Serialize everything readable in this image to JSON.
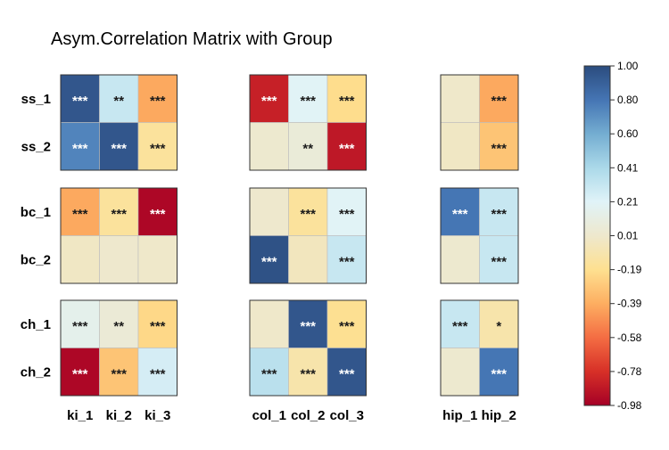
{
  "chart_data": {
    "type": "heatmap",
    "title": "Asym.Correlation Matrix with Group",
    "rows": [
      "ss_1",
      "ss_2",
      "bc_1",
      "bc_2",
      "ch_1",
      "ch_2"
    ],
    "row_groups": [
      [
        "ss_1",
        "ss_2"
      ],
      [
        "bc_1",
        "bc_2"
      ],
      [
        "ch_1",
        "ch_2"
      ]
    ],
    "columns": [
      "ki_1",
      "ki_2",
      "ki_3",
      "col_1",
      "col_2",
      "col_3",
      "hip_1",
      "hip_2"
    ],
    "column_groups": [
      [
        "ki_1",
        "ki_2",
        "ki_3"
      ],
      [
        "col_1",
        "col_2",
        "col_3"
      ],
      [
        "hip_1",
        "hip_2"
      ]
    ],
    "values": [
      [
        0.95,
        0.3,
        -0.4,
        -0.85,
        0.2,
        -0.2,
        0.0,
        -0.4
      ],
      [
        0.75,
        0.95,
        -0.15,
        0.02,
        0.06,
        -0.88,
        -0.02,
        -0.3
      ],
      [
        -0.4,
        -0.15,
        -0.95,
        0.01,
        -0.15,
        0.2,
        0.8,
        0.3
      ],
      [
        -0.02,
        0.01,
        0.0,
        0.97,
        -0.04,
        0.3,
        0.02,
        0.3
      ],
      [
        0.15,
        0.05,
        -0.22,
        0.0,
        0.95,
        -0.18,
        0.3,
        -0.1
      ],
      [
        -0.95,
        -0.3,
        0.25,
        0.35,
        -0.1,
        0.95,
        0.02,
        0.8
      ]
    ],
    "significance": [
      [
        "***",
        "**",
        "***",
        "***",
        "***",
        "***",
        "",
        "***"
      ],
      [
        "***",
        "***",
        "***",
        "",
        "**",
        "***",
        "",
        "***"
      ],
      [
        "***",
        "***",
        "***",
        "",
        "***",
        "***",
        "***",
        "***"
      ],
      [
        "",
        "",
        "",
        "***",
        "",
        "***",
        "",
        "***"
      ],
      [
        "***",
        "**",
        "***",
        "",
        "***",
        "***",
        "***",
        "*"
      ],
      [
        "***",
        "***",
        "***",
        "***",
        "***",
        "***",
        "",
        "***"
      ]
    ],
    "colorbar": {
      "min": -0.98,
      "max": 1.0,
      "tick_labels": [
        "1.00",
        "0.80",
        "0.60",
        "0.41",
        "0.21",
        "0.01",
        "-0.19",
        "-0.39",
        "-0.58",
        "-0.78",
        "-0.98"
      ],
      "colors": [
        "#a50026",
        "#d73027",
        "#f46d43",
        "#fdae61",
        "#fee090",
        "#eee8cd",
        "#e0f3f8",
        "#abd9e9",
        "#74add1",
        "#4575b4",
        "#2b4c7e"
      ]
    }
  }
}
